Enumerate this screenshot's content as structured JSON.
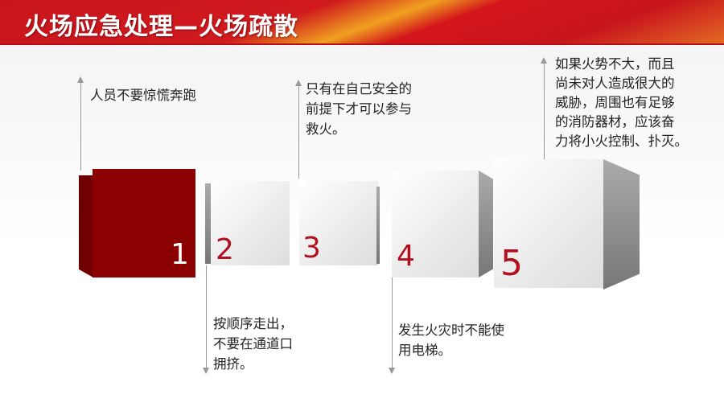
{
  "title": "火场应急处理—火场疏散",
  "steps": [
    {
      "number": "1",
      "text": [
        "人员不要惊慌奔跑"
      ]
    },
    {
      "number": "2",
      "text": [
        "按顺序走出，",
        "不要在通道口",
        "拥挤。"
      ]
    },
    {
      "number": "3",
      "text": [
        "只有在自己安全的",
        "前提下才可以参与",
        "救火。"
      ]
    },
    {
      "number": "4",
      "text": [
        "发生火灾时不能使",
        "用电梯。"
      ]
    },
    {
      "number": "5",
      "text": [
        "如果火势不大，而且",
        "尚未对人造成很大的",
        "威胁，周围也有足够",
        "的消防器材，应该奋",
        "力将小火控制、扑灭。"
      ]
    }
  ],
  "colors": {
    "header": "#c8141c",
    "highlight_box": "#8b0000",
    "number": "#b01020"
  }
}
